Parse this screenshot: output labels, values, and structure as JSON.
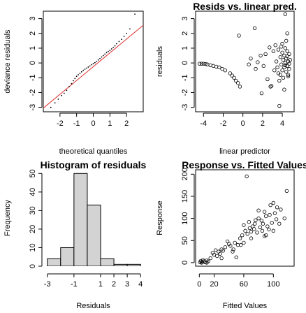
{
  "chart_data": [
    {
      "type": "scatter",
      "panel": "top-left",
      "title": "",
      "xlabel": "theoretical quantiles",
      "ylabel": "deviance residuals",
      "xlim": [
        -3.0,
        3.0
      ],
      "ylim": [
        -3.3,
        3.5
      ],
      "xticks": [
        -2,
        -1,
        0,
        1,
        2
      ],
      "yticks": [
        -3,
        -2,
        -1,
        0,
        1,
        2,
        3
      ],
      "reference_line": {
        "x": [
          -3.0,
          3.0
        ],
        "y": [
          -3.05,
          2.55
        ],
        "color": "#e03030"
      },
      "points": [
        [
          -2.55,
          -3.0
        ],
        [
          -2.3,
          -2.7
        ],
        [
          -2.1,
          -2.45
        ],
        [
          -1.9,
          -2.2
        ],
        [
          -1.75,
          -2.05
        ],
        [
          -1.6,
          -1.85
        ],
        [
          -1.45,
          -1.6
        ],
        [
          -1.3,
          -1.4
        ],
        [
          -1.2,
          -1.2
        ],
        [
          -1.1,
          -1.05
        ],
        [
          -1.0,
          -0.9
        ],
        [
          -0.9,
          -0.8
        ],
        [
          -0.8,
          -0.7
        ],
        [
          -0.7,
          -0.6
        ],
        [
          -0.6,
          -0.5
        ],
        [
          -0.5,
          -0.42
        ],
        [
          -0.4,
          -0.35
        ],
        [
          -0.3,
          -0.28
        ],
        [
          -0.2,
          -0.2
        ],
        [
          -0.1,
          -0.12
        ],
        [
          0.0,
          -0.05
        ],
        [
          0.1,
          0.02
        ],
        [
          0.2,
          0.1
        ],
        [
          0.3,
          0.2
        ],
        [
          0.4,
          0.3
        ],
        [
          0.5,
          0.4
        ],
        [
          0.6,
          0.5
        ],
        [
          0.7,
          0.6
        ],
        [
          0.8,
          0.7
        ],
        [
          0.9,
          0.78
        ],
        [
          1.0,
          0.85
        ],
        [
          1.1,
          0.95
        ],
        [
          1.2,
          1.05
        ],
        [
          1.3,
          1.15
        ],
        [
          1.4,
          1.3
        ],
        [
          1.55,
          1.45
        ],
        [
          1.7,
          1.6
        ],
        [
          1.85,
          1.8
        ],
        [
          2.0,
          2.0
        ],
        [
          2.2,
          2.3
        ],
        [
          2.5,
          3.3
        ]
      ],
      "point_color": "#000000"
    },
    {
      "type": "scatter",
      "panel": "top-right",
      "title": "Resids vs. linear pred.",
      "xlabel": "linear predictor",
      "ylabel": "residuals",
      "xlim": [
        -4.8,
        5.2
      ],
      "ylim": [
        -3.3,
        3.5
      ],
      "xticks": [
        -4,
        -2,
        0,
        2,
        4
      ],
      "yticks": [
        -3,
        -2,
        -1,
        0,
        1,
        2,
        3
      ],
      "points": [
        [
          -4.4,
          -0.05
        ],
        [
          -4.2,
          -0.05
        ],
        [
          -4.0,
          -0.05
        ],
        [
          -3.8,
          -0.07
        ],
        [
          -3.6,
          -0.1
        ],
        [
          -3.3,
          -0.15
        ],
        [
          -3.0,
          -0.2
        ],
        [
          -2.7,
          -0.25
        ],
        [
          -2.4,
          -0.3
        ],
        [
          -2.1,
          -0.4
        ],
        [
          -1.8,
          -0.5
        ],
        [
          -1.3,
          -0.7
        ],
        [
          -1.1,
          -0.85
        ],
        [
          -0.9,
          -1.0
        ],
        [
          -0.7,
          -1.2
        ],
        [
          -0.5,
          -1.35
        ],
        [
          -0.3,
          -1.6
        ],
        [
          -0.4,
          1.85
        ],
        [
          0.8,
          0.3
        ],
        [
          0.6,
          -0.1
        ],
        [
          1.2,
          2.35
        ],
        [
          1.5,
          0.05
        ],
        [
          1.3,
          -0.4
        ],
        [
          1.8,
          0.5
        ],
        [
          1.9,
          -2.05
        ],
        [
          2.1,
          -0.2
        ],
        [
          2.3,
          0.6
        ],
        [
          2.5,
          -1.1
        ],
        [
          2.7,
          1.05
        ],
        [
          2.8,
          -1.6
        ],
        [
          2.9,
          -1.55
        ],
        [
          3.1,
          0.8
        ],
        [
          3.2,
          -0.5
        ],
        [
          3.3,
          1.2
        ],
        [
          3.4,
          0.1
        ],
        [
          3.5,
          -0.3
        ],
        [
          3.6,
          0.9
        ],
        [
          3.7,
          -1.2
        ],
        [
          3.7,
          -2.9
        ],
        [
          3.8,
          0.4
        ],
        [
          3.8,
          -0.8
        ],
        [
          3.9,
          1.1
        ],
        [
          3.9,
          -0.1
        ],
        [
          4.0,
          0.7
        ],
        [
          4.0,
          -0.5
        ],
        [
          4.1,
          0.2
        ],
        [
          4.1,
          -1.0
        ],
        [
          4.2,
          0.5
        ],
        [
          4.2,
          -0.3
        ],
        [
          4.3,
          1.0
        ],
        [
          4.3,
          0.0
        ],
        [
          4.4,
          0.3
        ],
        [
          4.4,
          -0.6
        ],
        [
          4.5,
          0.8
        ],
        [
          4.5,
          -0.2
        ],
        [
          4.6,
          0.1
        ],
        [
          4.6,
          -0.9
        ],
        [
          4.7,
          0.6
        ],
        [
          4.7,
          -0.4
        ],
        [
          4.8,
          0.2
        ],
        [
          4.3,
          3.3
        ],
        [
          4.5,
          2.0
        ],
        [
          4.2,
          -1.8
        ],
        [
          4.6,
          -0.8
        ],
        [
          4.4,
          1.5
        ],
        [
          4.0,
          1.3
        ],
        [
          3.6,
          -0.7
        ],
        [
          4.7,
          -0.05
        ],
        [
          4.5,
          0.45
        ],
        [
          4.3,
          -0.15
        ]
      ],
      "point_color": "#000000"
    },
    {
      "type": "bar",
      "panel": "bottom-left",
      "title": "Histogram of residuals",
      "xlabel": "Residuals",
      "ylabel": "Frequency",
      "xlim": [
        -3.3,
        4.2
      ],
      "ylim": [
        0,
        52
      ],
      "xticks": [
        -3,
        -1,
        1,
        2,
        3,
        4
      ],
      "yticks": [
        0,
        10,
        20,
        30,
        40,
        50
      ],
      "bins": [
        [
          -3,
          -2
        ],
        [
          -2,
          -1
        ],
        [
          -1,
          0
        ],
        [
          0,
          1
        ],
        [
          1,
          2
        ],
        [
          2,
          3
        ],
        [
          3,
          4
        ]
      ],
      "values": [
        4,
        10,
        50,
        33,
        4,
        1,
        1
      ],
      "bar_color": "#d3d3d3"
    },
    {
      "type": "scatter",
      "panel": "bottom-right",
      "title": "Response vs. Fitted Values",
      "xlabel": "Fitted Values",
      "ylabel": "Response",
      "xlim": [
        -5,
        128
      ],
      "ylim": [
        -8,
        210
      ],
      "xticks": [
        0,
        20,
        60,
        100
      ],
      "yticks": [
        0,
        50,
        100,
        150,
        200
      ],
      "points": [
        [
          1,
          1
        ],
        [
          2,
          4
        ],
        [
          3,
          0
        ],
        [
          4,
          2
        ],
        [
          5,
          6
        ],
        [
          6,
          3
        ],
        [
          8,
          1
        ],
        [
          10,
          5
        ],
        [
          12,
          3
        ],
        [
          15,
          10
        ],
        [
          18,
          22
        ],
        [
          20,
          18
        ],
        [
          22,
          28
        ],
        [
          24,
          15
        ],
        [
          26,
          25
        ],
        [
          28,
          20
        ],
        [
          30,
          30
        ],
        [
          32,
          27
        ],
        [
          35,
          35
        ],
        [
          38,
          48
        ],
        [
          40,
          42
        ],
        [
          42,
          38
        ],
        [
          45,
          25
        ],
        [
          48,
          45
        ],
        [
          50,
          12
        ],
        [
          52,
          40
        ],
        [
          55,
          55
        ],
        [
          58,
          62
        ],
        [
          60,
          85
        ],
        [
          62,
          72
        ],
        [
          64,
          195
        ],
        [
          65,
          65
        ],
        [
          67,
          92
        ],
        [
          68,
          78
        ],
        [
          70,
          70
        ],
        [
          72,
          82
        ],
        [
          74,
          76
        ],
        [
          75,
          88
        ],
        [
          76,
          96
        ],
        [
          78,
          68
        ],
        [
          80,
          100
        ],
        [
          80,
          118
        ],
        [
          82,
          80
        ],
        [
          84,
          95
        ],
        [
          85,
          72
        ],
        [
          86,
          88
        ],
        [
          88,
          115
        ],
        [
          90,
          105
        ],
        [
          90,
          62
        ],
        [
          92,
          82
        ],
        [
          94,
          75
        ],
        [
          95,
          108
        ],
        [
          96,
          130
        ],
        [
          98,
          90
        ],
        [
          100,
          135
        ],
        [
          102,
          112
        ],
        [
          104,
          98
        ],
        [
          105,
          125
        ],
        [
          108,
          88
        ],
        [
          110,
          120
        ],
        [
          115,
          100
        ],
        [
          118,
          162
        ],
        [
          10,
          0
        ],
        [
          30,
          10
        ],
        [
          56,
          40
        ],
        [
          70,
          55
        ],
        [
          88,
          60
        ],
        [
          100,
          72
        ],
        [
          46,
          30
        ],
        [
          60,
          45
        ]
      ],
      "point_color": "#000000"
    }
  ]
}
